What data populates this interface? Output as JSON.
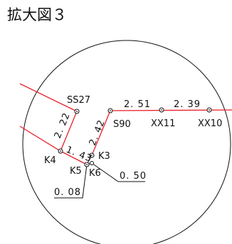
{
  "title": "拡大図３",
  "colors": {
    "line": "#e8202a",
    "ink": "#111111",
    "background": "#ffffff"
  },
  "stations": [
    {
      "id": "SS27",
      "label": "SS27"
    },
    {
      "id": "S90",
      "label": "S90"
    },
    {
      "id": "XX11",
      "label": "XX11"
    },
    {
      "id": "XX10",
      "label": "XX10"
    },
    {
      "id": "K4",
      "label": "K4"
    },
    {
      "id": "K3",
      "label": "K3"
    },
    {
      "id": "K5",
      "label": "K5"
    },
    {
      "id": "K6",
      "label": "K6"
    }
  ],
  "distances": [
    {
      "id": "d-s90-xx11",
      "text": "2. 51"
    },
    {
      "id": "d-xx11-xx10",
      "text": "2. 39"
    },
    {
      "id": "d-ss27-k4",
      "text": "2. 22"
    },
    {
      "id": "d-k3-s90",
      "text": "2. 42"
    },
    {
      "id": "d-k4-k5",
      "text": "1. 43"
    },
    {
      "id": "d-leader-050",
      "text": "0. 50"
    },
    {
      "id": "d-leader-008",
      "text": "0. 08"
    }
  ]
}
